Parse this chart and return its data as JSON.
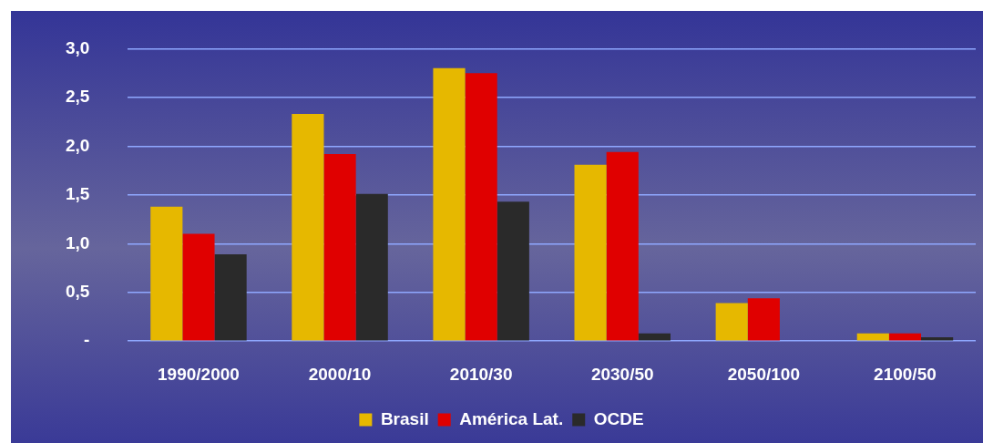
{
  "chart_data": {
    "type": "bar",
    "categories": [
      "1990/2000",
      "2000/10",
      "2010/30",
      "2030/50",
      "2050/100",
      "2100/50"
    ],
    "series": [
      {
        "name": "Brasil",
        "color": "#e6b800",
        "values": [
          1.38,
          2.33,
          2.8,
          1.81,
          0.39,
          0.08
        ]
      },
      {
        "name": "América Lat.",
        "color": "#e00000",
        "values": [
          1.1,
          1.92,
          2.75,
          1.94,
          0.44,
          0.08
        ]
      },
      {
        "name": "OCDE",
        "color": "#2a2a2a",
        "values": [
          0.89,
          1.51,
          1.43,
          0.08,
          null,
          0.04
        ]
      }
    ],
    "ylim": [
      0,
      3
    ],
    "yticks": [
      {
        "value": 0,
        "label": "-"
      },
      {
        "value": 0.5,
        "label": "0,5"
      },
      {
        "value": 1,
        "label": "1,0"
      },
      {
        "value": 1.5,
        "label": "1,5"
      },
      {
        "value": 2,
        "label": "2,0"
      },
      {
        "value": 2.5,
        "label": "2,5"
      },
      {
        "value": 3,
        "label": "3,0"
      }
    ],
    "grid": "y",
    "legend": "bottom"
  }
}
